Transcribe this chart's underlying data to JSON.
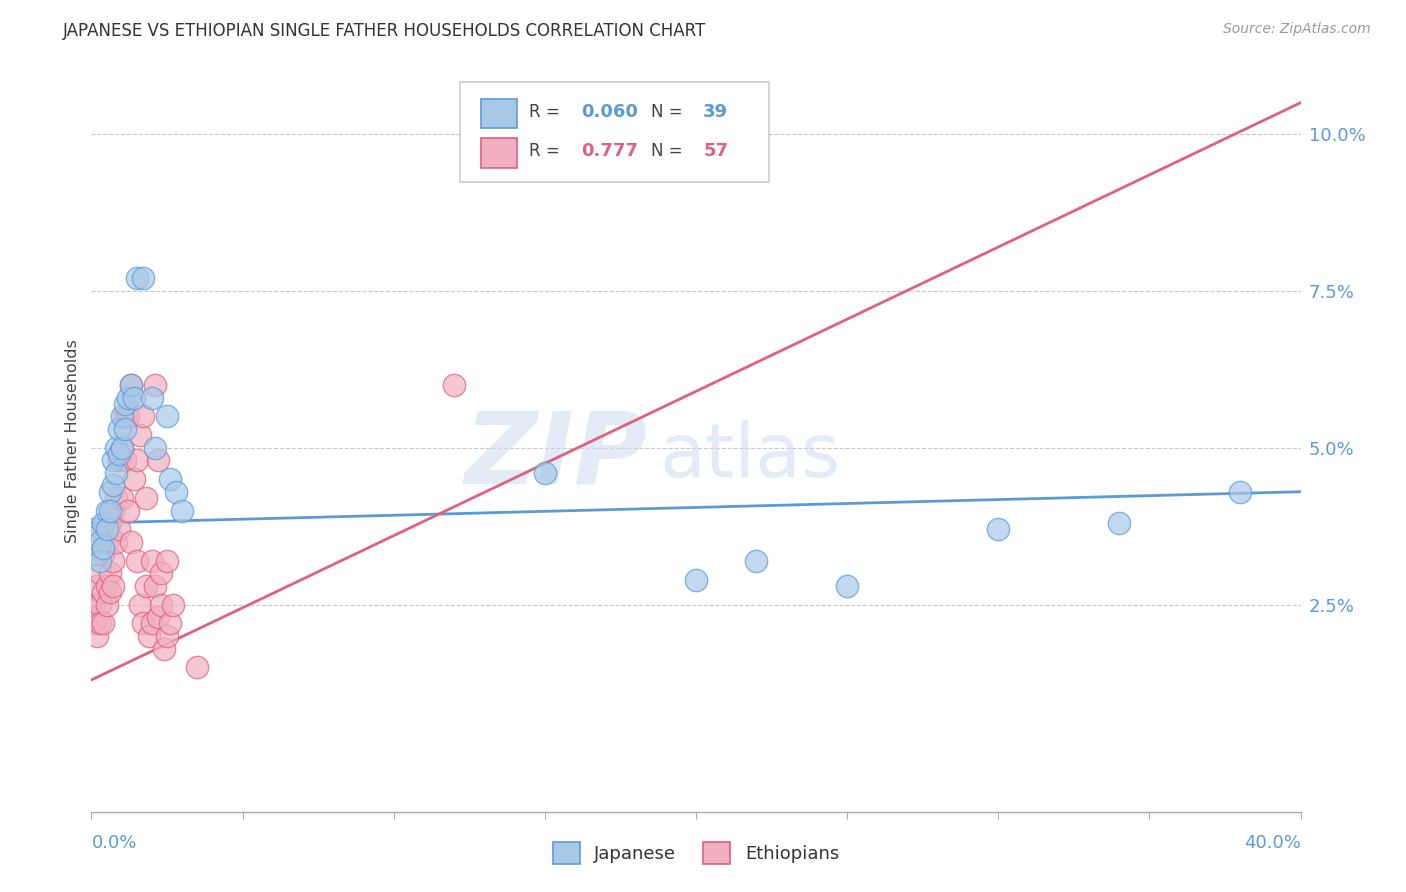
{
  "title": "JAPANESE VS ETHIOPIAN SINGLE FATHER HOUSEHOLDS CORRELATION CHART",
  "source": "Source: ZipAtlas.com",
  "ylabel": "Single Father Households",
  "watermark_zip": "ZIP",
  "watermark_atlas": "atlas",
  "legend_r_jap": "0.060",
  "legend_n_jap": "39",
  "legend_r_eth": "0.777",
  "legend_n_eth": "57",
  "ytick_labels": [
    "",
    "2.5%",
    "5.0%",
    "7.5%",
    "10.0%"
  ],
  "ytick_vals": [
    0.0,
    0.025,
    0.05,
    0.075,
    0.1
  ],
  "xlim": [
    0.0,
    0.4
  ],
  "ylim": [
    -0.008,
    0.11
  ],
  "title_color": "#333333",
  "tick_color": "#5b9bd5",
  "grid_color": "#c8c8c8",
  "japanese_color": "#a8c8e8",
  "ethiopian_color": "#f0b0c0",
  "japanese_edge": "#5b9bd5",
  "ethiopian_edge": "#e06080",
  "trend_japanese_color": "#5b9bd5",
  "trend_ethiopian_color": "#e06080",
  "japanese_scatter": [
    [
      0.001,
      0.037
    ],
    [
      0.002,
      0.036
    ],
    [
      0.002,
      0.033
    ],
    [
      0.003,
      0.035
    ],
    [
      0.003,
      0.032
    ],
    [
      0.004,
      0.038
    ],
    [
      0.004,
      0.034
    ],
    [
      0.005,
      0.04
    ],
    [
      0.005,
      0.037
    ],
    [
      0.006,
      0.043
    ],
    [
      0.006,
      0.04
    ],
    [
      0.007,
      0.048
    ],
    [
      0.007,
      0.044
    ],
    [
      0.008,
      0.05
    ],
    [
      0.008,
      0.046
    ],
    [
      0.009,
      0.053
    ],
    [
      0.009,
      0.049
    ],
    [
      0.01,
      0.055
    ],
    [
      0.01,
      0.05
    ],
    [
      0.011,
      0.057
    ],
    [
      0.011,
      0.053
    ],
    [
      0.012,
      0.058
    ],
    [
      0.013,
      0.06
    ],
    [
      0.014,
      0.058
    ],
    [
      0.015,
      0.077
    ],
    [
      0.017,
      0.077
    ],
    [
      0.02,
      0.058
    ],
    [
      0.021,
      0.05
    ],
    [
      0.025,
      0.055
    ],
    [
      0.026,
      0.045
    ],
    [
      0.028,
      0.043
    ],
    [
      0.03,
      0.04
    ],
    [
      0.15,
      0.046
    ],
    [
      0.2,
      0.029
    ],
    [
      0.22,
      0.032
    ],
    [
      0.25,
      0.028
    ],
    [
      0.3,
      0.037
    ],
    [
      0.34,
      0.038
    ],
    [
      0.38,
      0.043
    ]
  ],
  "ethiopian_scatter": [
    [
      0.001,
      0.025
    ],
    [
      0.001,
      0.022
    ],
    [
      0.002,
      0.028
    ],
    [
      0.002,
      0.023
    ],
    [
      0.002,
      0.02
    ],
    [
      0.003,
      0.03
    ],
    [
      0.003,
      0.025
    ],
    [
      0.003,
      0.022
    ],
    [
      0.004,
      0.033
    ],
    [
      0.004,
      0.027
    ],
    [
      0.004,
      0.022
    ],
    [
      0.005,
      0.035
    ],
    [
      0.005,
      0.028
    ],
    [
      0.005,
      0.025
    ],
    [
      0.006,
      0.038
    ],
    [
      0.006,
      0.03
    ],
    [
      0.006,
      0.027
    ],
    [
      0.007,
      0.04
    ],
    [
      0.007,
      0.032
    ],
    [
      0.007,
      0.028
    ],
    [
      0.008,
      0.042
    ],
    [
      0.008,
      0.035
    ],
    [
      0.009,
      0.048
    ],
    [
      0.009,
      0.037
    ],
    [
      0.01,
      0.05
    ],
    [
      0.01,
      0.042
    ],
    [
      0.011,
      0.055
    ],
    [
      0.011,
      0.048
    ],
    [
      0.012,
      0.055
    ],
    [
      0.012,
      0.04
    ],
    [
      0.013,
      0.06
    ],
    [
      0.013,
      0.035
    ],
    [
      0.014,
      0.045
    ],
    [
      0.015,
      0.048
    ],
    [
      0.015,
      0.032
    ],
    [
      0.016,
      0.052
    ],
    [
      0.016,
      0.025
    ],
    [
      0.017,
      0.055
    ],
    [
      0.017,
      0.022
    ],
    [
      0.018,
      0.042
    ],
    [
      0.018,
      0.028
    ],
    [
      0.019,
      0.02
    ],
    [
      0.02,
      0.032
    ],
    [
      0.02,
      0.022
    ],
    [
      0.021,
      0.06
    ],
    [
      0.021,
      0.028
    ],
    [
      0.022,
      0.048
    ],
    [
      0.022,
      0.023
    ],
    [
      0.023,
      0.03
    ],
    [
      0.023,
      0.025
    ],
    [
      0.024,
      0.018
    ],
    [
      0.025,
      0.032
    ],
    [
      0.025,
      0.02
    ],
    [
      0.026,
      0.022
    ],
    [
      0.027,
      0.025
    ],
    [
      0.035,
      0.015
    ],
    [
      0.12,
      0.06
    ]
  ],
  "japanese_trend": [
    0.0,
    0.038,
    0.4,
    0.043
  ],
  "ethiopian_trend": [
    0.0,
    0.013,
    0.4,
    0.105
  ]
}
